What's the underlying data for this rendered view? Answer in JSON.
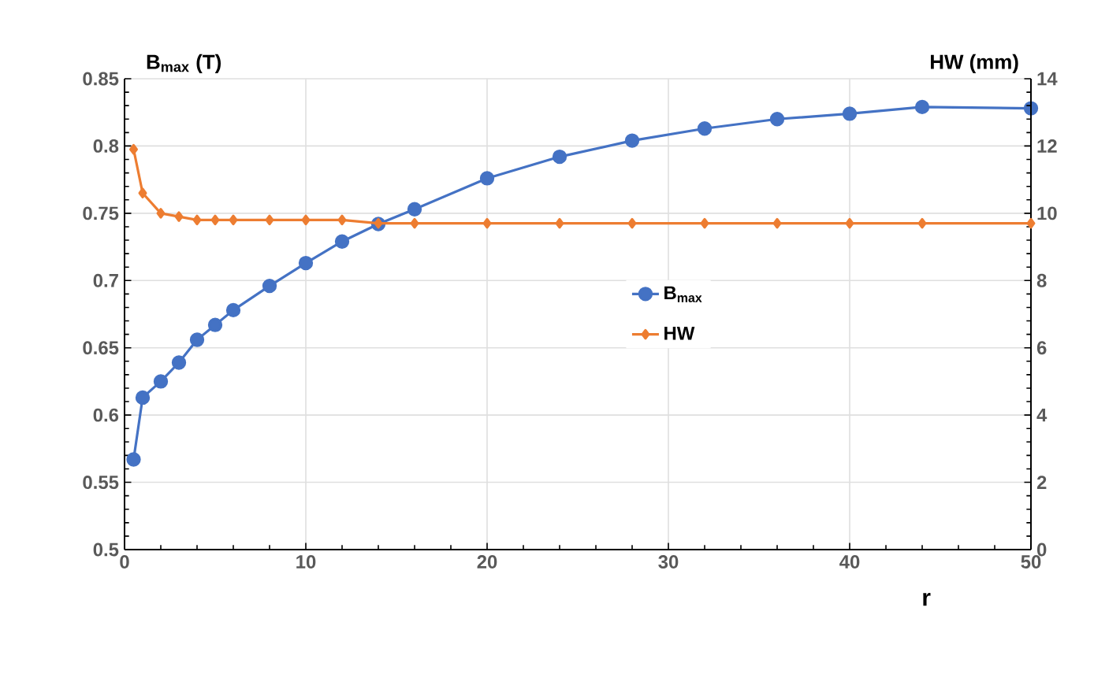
{
  "chart_data": {
    "type": "line",
    "xlabel": "r",
    "ylabel": "B$_{max}$ (T)",
    "y2label": "HW (mm)",
    "x": [
      0.5,
      1,
      2,
      3,
      4,
      5,
      6,
      8,
      10,
      12,
      14,
      16,
      20,
      24,
      28,
      32,
      36,
      40,
      44,
      50
    ],
    "series": [
      {
        "name": "B$_{max}$",
        "color": "#4472c4",
        "marker": "circle",
        "values": [
          0.567,
          0.613,
          0.625,
          0.639,
          0.656,
          0.667,
          0.678,
          0.696,
          0.713,
          0.729,
          0.742,
          0.753,
          0.776,
          0.792,
          0.804,
          0.813,
          0.82,
          0.824,
          0.829,
          0.828
        ]
      },
      {
        "name": "HW",
        "color": "#ed7d31",
        "marker": "diamond",
        "axis": "y2",
        "values": [
          11.9,
          10.6,
          10.0,
          9.9,
          9.8,
          9.8,
          9.8,
          9.8,
          9.8,
          9.8,
          9.7,
          9.7,
          9.7,
          9.7,
          9.7,
          9.7,
          9.7,
          9.7,
          9.7,
          9.7
        ]
      }
    ],
    "xlim": [
      0,
      50
    ],
    "xticks": [
      0,
      10,
      20,
      30,
      40,
      50
    ],
    "ylim": [
      0.5,
      0.85
    ],
    "yticks": [
      0.5,
      0.55,
      0.6,
      0.65,
      0.7,
      0.75,
      0.8,
      0.85
    ],
    "y2lim": [
      0,
      14
    ],
    "y2ticks": [
      0,
      2,
      4,
      6,
      8,
      10,
      12,
      14
    ],
    "grid": true,
    "legend": "right",
    "line_style": "solid"
  }
}
